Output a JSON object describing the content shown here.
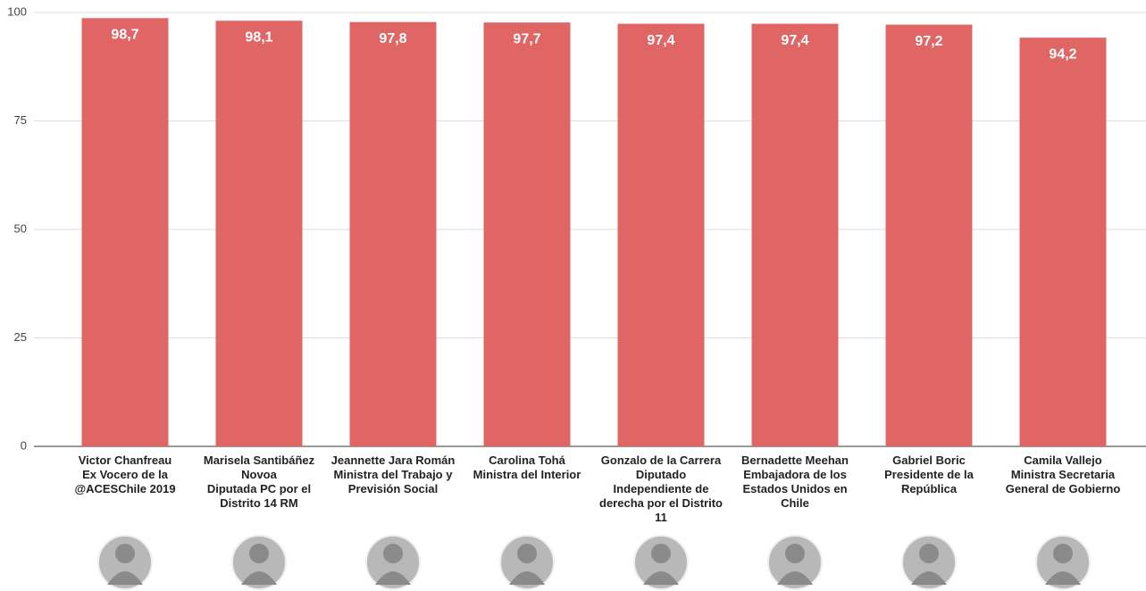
{
  "chart_data": {
    "type": "bar",
    "categories": [
      "Victor Chanfreau\nEx Vocero de la @ACESChile 2019",
      "Marisela Santibáñez Novoa\nDiputada PC por el Distrito 14 RM",
      "Jeannette Jara Román\nMinistra del Trabajo y Previsión Social",
      "Carolina Tohá\nMinistra del Interior",
      "Gonzalo de la Carrera\nDiputado Independiente de derecha por el Distrito 11",
      "Bernadette Meehan\nEmbajadora de los Estados Unidos en Chile",
      "Gabriel Boric\nPresidente de la República",
      "Camila Vallejo\nMinistra Secretaria General de Gobierno"
    ],
    "values": [
      98.7,
      98.1,
      97.8,
      97.7,
      97.4,
      97.4,
      97.2,
      94.2
    ],
    "value_labels": [
      "98,7",
      "98,1",
      "97,8",
      "97,7",
      "97,4",
      "97,4",
      "97,2",
      "94,2"
    ],
    "color": "#e06666",
    "ylim": [
      0,
      100
    ],
    "yticks": [
      0,
      25,
      50,
      75,
      100
    ],
    "grid": true
  }
}
